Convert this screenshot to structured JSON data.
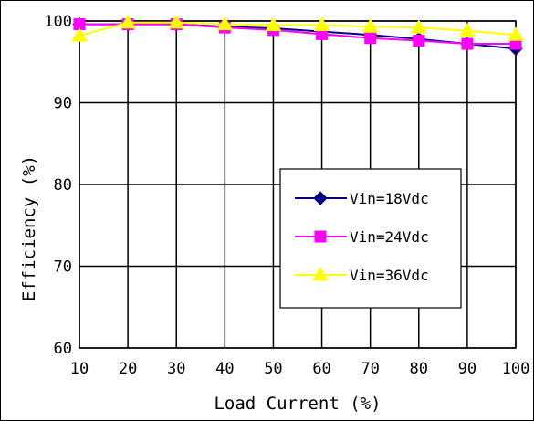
{
  "chart_data": {
    "type": "line",
    "xlabel": "Load Current (%)",
    "ylabel": "Efficiency (%)",
    "xlim": [
      10,
      100
    ],
    "ylim": [
      60,
      100
    ],
    "x": [
      10,
      20,
      30,
      40,
      50,
      60,
      70,
      80,
      90,
      100
    ],
    "x_ticks": [
      "10",
      "20",
      "30",
      "40",
      "50",
      "60",
      "70",
      "80",
      "90",
      "100"
    ],
    "y_ticks": [
      "60",
      "70",
      "80",
      "90",
      "100"
    ],
    "grid": true,
    "legend_position": "center-right",
    "series": [
      {
        "name": "Vin=18Vdc",
        "values": [
          99.6,
          99.6,
          99.6,
          99.3,
          99.1,
          98.7,
          98.3,
          97.8,
          97.2,
          96.6
        ],
        "color": "#00007f",
        "marker": "diamond"
      },
      {
        "name": "Vin=24Vdc",
        "values": [
          99.6,
          99.6,
          99.6,
          99.2,
          98.9,
          98.4,
          97.9,
          97.6,
          97.2,
          97.2
        ],
        "color": "#ff00ff",
        "marker": "square"
      },
      {
        "name": "Vin=36Vdc",
        "values": [
          98.2,
          99.8,
          99.8,
          99.6,
          99.5,
          99.5,
          99.3,
          99.2,
          98.8,
          98.3
        ],
        "color": "#ffff00",
        "marker": "triangle"
      }
    ]
  }
}
